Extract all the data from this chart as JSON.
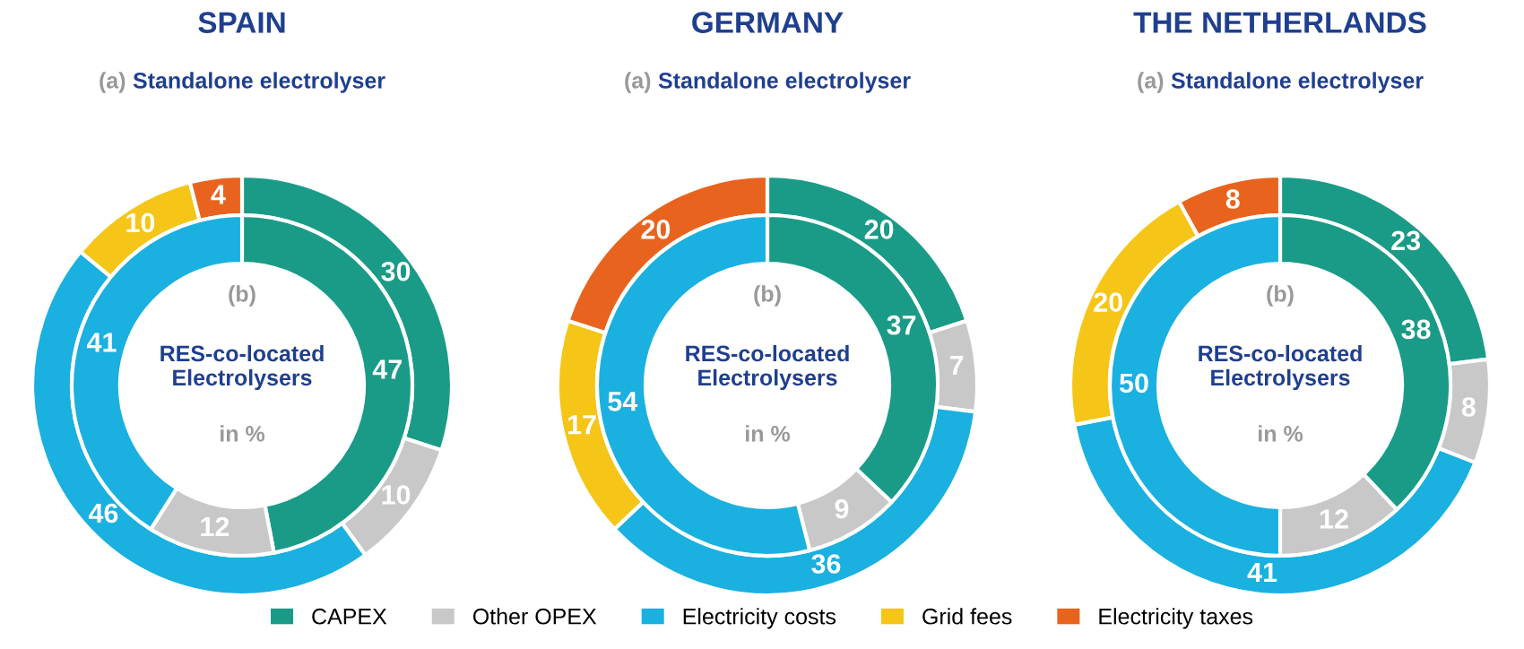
{
  "chart_data": [
    {
      "type": "donut",
      "title": "SPAIN",
      "categories": [
        "CAPEX",
        "Other OPEX",
        "Electricity costs",
        "Grid fees",
        "Electricity taxes"
      ],
      "colors": [
        "#1a9b87",
        "#c8c8c8",
        "#1ab0e0",
        "#f5c518",
        "#e8641e"
      ],
      "data_labels": true,
      "legend": "bottom",
      "annotations": [
        "in %"
      ],
      "series": [
        {
          "name": "(a) Standalone electrolyser",
          "values": [
            30,
            10,
            46,
            10,
            4
          ]
        },
        {
          "name": "(b) RES-co-located Electrolysers",
          "values": [
            47,
            12,
            41,
            null,
            null
          ]
        }
      ]
    },
    {
      "type": "donut",
      "title": "GERMANY",
      "colors": [
        "#1a9b87",
        "#c8c8c8",
        "#1ab0e0",
        "#f5c518",
        "#e8641e"
      ],
      "data_labels": true,
      "annotations": [
        "in %"
      ],
      "series": [
        {
          "name": "(a) Standalone electrolyser",
          "values": [
            20,
            7,
            36,
            17,
            20
          ]
        },
        {
          "name": "(b) RES-co-located Electrolysers",
          "values": [
            37,
            9,
            54,
            null,
            null
          ]
        }
      ]
    },
    {
      "type": "donut",
      "title": "THE NETHERLANDS",
      "colors": [
        "#1a9b87",
        "#c8c8c8",
        "#1ab0e0",
        "#f5c518",
        "#e8641e"
      ],
      "data_labels": true,
      "annotations": [
        "in %"
      ],
      "series": [
        {
          "name": "(a) Standalone electrolyser",
          "values": [
            23,
            8,
            41,
            20,
            8
          ]
        },
        {
          "name": "(b) RES-co-located Electrolysers",
          "values": [
            38,
            12,
            50,
            null,
            null
          ]
        }
      ]
    }
  ]
}
